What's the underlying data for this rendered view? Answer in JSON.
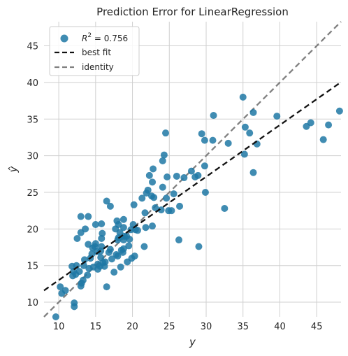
{
  "chart_data": {
    "type": "scatter",
    "title": "Prediction Error for LinearRegression",
    "xlabel": "y",
    "ylabel": "ŷ",
    "xlim": [
      8,
      48.3
    ],
    "ylim": [
      8,
      48.3
    ],
    "xticks": [
      10,
      15,
      20,
      25,
      30,
      35,
      40,
      45
    ],
    "yticks": [
      10,
      15,
      20,
      25,
      30,
      35,
      40,
      45
    ],
    "grid": true,
    "legend": {
      "placement": "top-left",
      "entries": [
        {
          "label": "R² = 0.756",
          "label_prefix": "R",
          "label_sup": "2",
          "label_suffix": " = 0.756",
          "marker": "circle",
          "color": "#1f78a4"
        },
        {
          "label": "best fit",
          "marker": "dashed-line",
          "color": "#111111"
        },
        {
          "label": "identity",
          "marker": "dashed-line",
          "color": "#808080"
        }
      ]
    },
    "colors": {
      "points": "#1f78a4",
      "best_fit": "#111111",
      "identity": "#808080",
      "grid": "#d0d0d0"
    },
    "best_fit": {
      "slope": 0.706,
      "intercept": 5.95
    },
    "identity": {
      "slope": 1,
      "intercept": 0
    },
    "points": [
      [
        9.6,
        8.0
      ],
      [
        10.2,
        12.1
      ],
      [
        10.4,
        11.2
      ],
      [
        10.9,
        11.6
      ],
      [
        11.8,
        14.9
      ],
      [
        11.9,
        13.6
      ],
      [
        12.0,
        14.2
      ],
      [
        12.1,
        9.9
      ],
      [
        12.1,
        9.4
      ],
      [
        12.3,
        13.8
      ],
      [
        12.4,
        15.0
      ],
      [
        12.5,
        18.7
      ],
      [
        12.8,
        14.2
      ],
      [
        13.0,
        12.2
      ],
      [
        13.0,
        19.5
      ],
      [
        13.0,
        21.7
      ],
      [
        13.1,
        12.6
      ],
      [
        13.3,
        13.0
      ],
      [
        13.4,
        15.0
      ],
      [
        13.5,
        15.8
      ],
      [
        13.6,
        20.0
      ],
      [
        13.9,
        13.7
      ],
      [
        14.0,
        17.9
      ],
      [
        14.0,
        21.7
      ],
      [
        14.1,
        14.6
      ],
      [
        14.3,
        16.0
      ],
      [
        14.5,
        16.6
      ],
      [
        14.6,
        17.4
      ],
      [
        14.7,
        14.8
      ],
      [
        14.9,
        17.6
      ],
      [
        15.0,
        18.0
      ],
      [
        15.0,
        20.6
      ],
      [
        15.2,
        16.9
      ],
      [
        15.3,
        15.2
      ],
      [
        15.3,
        14.5
      ],
      [
        15.6,
        14.9
      ],
      [
        15.7,
        16.1
      ],
      [
        15.7,
        17.0
      ],
      [
        15.8,
        17.6
      ],
      [
        15.8,
        18.7
      ],
      [
        15.8,
        20.7
      ],
      [
        15.9,
        19.4
      ],
      [
        16.0,
        15.4
      ],
      [
        16.2,
        14.9
      ],
      [
        16.3,
        15.5
      ],
      [
        16.5,
        12.1
      ],
      [
        16.5,
        23.8
      ],
      [
        16.8,
        16.8
      ],
      [
        17.0,
        23.1
      ],
      [
        17.0,
        17.2
      ],
      [
        17.2,
        15.9
      ],
      [
        17.5,
        14.1
      ],
      [
        17.7,
        20.0
      ],
      [
        17.8,
        16.5
      ],
      [
        17.9,
        21.1
      ],
      [
        18.0,
        16.3
      ],
      [
        18.0,
        18.5
      ],
      [
        18.1,
        18.8
      ],
      [
        18.1,
        20.6
      ],
      [
        18.3,
        19.5
      ],
      [
        18.4,
        14.8
      ],
      [
        18.5,
        17.1
      ],
      [
        18.7,
        16.8
      ],
      [
        18.8,
        20.2
      ],
      [
        18.8,
        21.3
      ],
      [
        18.8,
        17.3
      ],
      [
        18.8,
        18.5
      ],
      [
        18.9,
        19.0
      ],
      [
        19.2,
        19.0
      ],
      [
        19.3,
        15.5
      ],
      [
        19.5,
        17.7
      ],
      [
        19.6,
        18.6
      ],
      [
        19.8,
        19.9
      ],
      [
        19.9,
        16.0
      ],
      [
        20.1,
        20.6
      ],
      [
        20.2,
        23.3
      ],
      [
        20.3,
        16.3
      ],
      [
        20.4,
        19.9
      ],
      [
        20.7,
        19.8
      ],
      [
        21.3,
        24.2
      ],
      [
        21.6,
        17.6
      ],
      [
        21.7,
        22.2
      ],
      [
        21.8,
        20.2
      ],
      [
        21.9,
        24.9
      ],
      [
        22.1,
        25.3
      ],
      [
        22.3,
        27.3
      ],
      [
        22.6,
        24.5
      ],
      [
        22.7,
        26.4
      ],
      [
        22.7,
        20.4
      ],
      [
        22.8,
        28.2
      ],
      [
        22.9,
        24.3
      ],
      [
        23.1,
        22.9
      ],
      [
        23.9,
        22.6
      ],
      [
        24.1,
        29.3
      ],
      [
        24.1,
        25.7
      ],
      [
        24.3,
        30.1
      ],
      [
        24.5,
        33.1
      ],
      [
        24.6,
        24.2
      ],
      [
        24.7,
        27.1
      ],
      [
        24.9,
        22.5
      ],
      [
        25.3,
        22.5
      ],
      [
        25.6,
        24.8
      ],
      [
        26.0,
        27.2
      ],
      [
        26.3,
        18.5
      ],
      [
        26.4,
        23.1
      ],
      [
        27.0,
        27.0
      ],
      [
        28.0,
        27.9
      ],
      [
        28.5,
        27.1
      ],
      [
        28.9,
        27.3
      ],
      [
        29.0,
        17.6
      ],
      [
        29.4,
        33.0
      ],
      [
        29.8,
        32.1
      ],
      [
        29.8,
        28.6
      ],
      [
        29.9,
        25.0
      ],
      [
        30.9,
        32.1
      ],
      [
        31.0,
        35.5
      ],
      [
        32.5,
        22.8
      ],
      [
        33.0,
        31.7
      ],
      [
        35.0,
        38.0
      ],
      [
        35.2,
        30.2
      ],
      [
        35.3,
        33.9
      ],
      [
        35.9,
        33.1
      ],
      [
        36.4,
        27.7
      ],
      [
        36.4,
        35.9
      ],
      [
        36.9,
        31.6
      ],
      [
        39.6,
        35.4
      ],
      [
        43.6,
        34.0
      ],
      [
        44.2,
        34.5
      ],
      [
        45.9,
        32.2
      ],
      [
        46.6,
        34.2
      ],
      [
        48.1,
        36.1
      ]
    ]
  }
}
